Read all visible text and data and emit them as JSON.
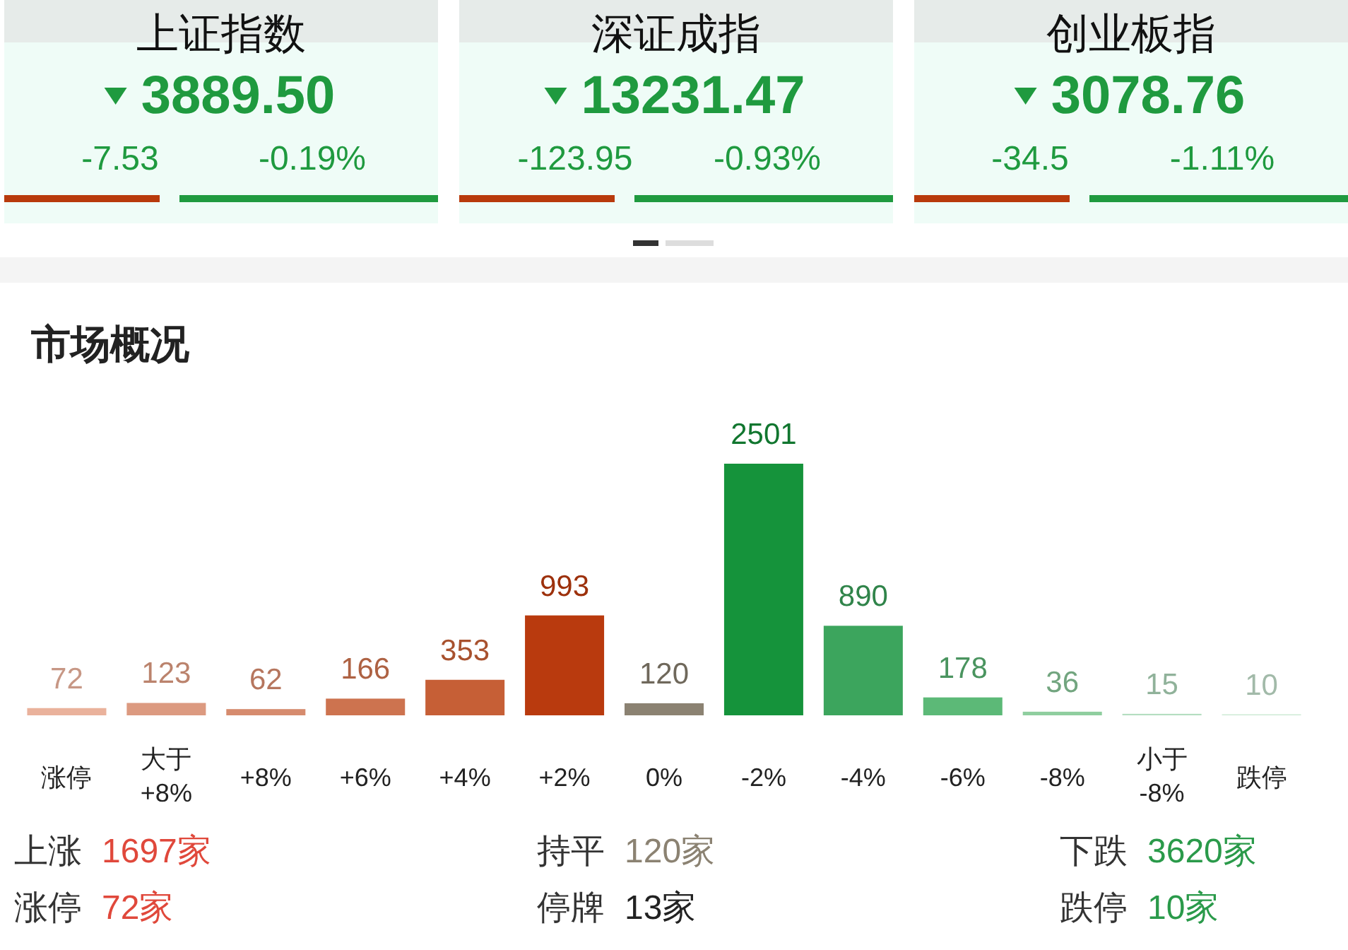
{
  "chart_data": [
    {
      "type": "other",
      "title": "上证指数",
      "annotations": [
        "3889.50",
        "-7.53",
        "-0.19%"
      ]
    },
    {
      "type": "other",
      "title": "深证成指",
      "annotations": [
        "13231.47",
        "-123.95",
        "-0.93%"
      ]
    },
    {
      "type": "other",
      "title": "创业板指",
      "annotations": [
        "3078.76",
        "-34.5",
        "-1.11%"
      ]
    },
    {
      "type": "bar",
      "title": "市场概况",
      "categories": [
        "涨停",
        "大于\n+8%",
        "+8%",
        "+6%",
        "+4%",
        "+2%",
        "0%",
        "-2%",
        "-4%",
        "-6%",
        "-8%",
        "小于\n-8%",
        "跌停"
      ],
      "values": [
        72,
        123,
        62,
        166,
        353,
        993,
        120,
        2501,
        890,
        178,
        36,
        15,
        10
      ],
      "colors": [
        "#eab29c",
        "#dc9a80",
        "#d68b6e",
        "#cd734f",
        "#c65f36",
        "#b93a0e",
        "#8b8272",
        "#15933b",
        "#3ca55d",
        "#5cb977",
        "#8fce9f",
        "#b4dec0",
        "#cbe9d3"
      ],
      "data_labels": true,
      "annotations": [
        "上涨 1697家",
        "涨停 72家",
        "持平 120家",
        "停牌 13家",
        "下跌 3620家",
        "跌停 10家"
      ]
    }
  ]
}
